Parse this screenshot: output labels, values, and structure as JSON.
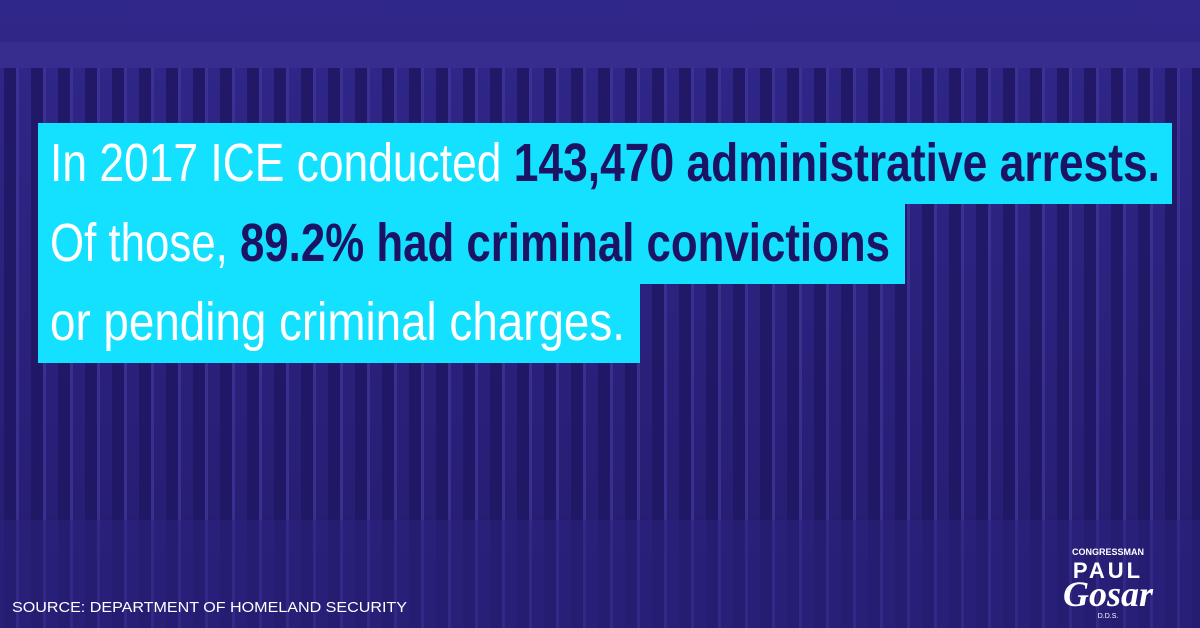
{
  "headline": {
    "lines": [
      {
        "normal": "In 2017 ICE conducted ",
        "bold": "143,470 administrative arrests."
      },
      {
        "normal": "Of those, ",
        "bold": "89.2% had criminal convictions"
      },
      {
        "normal": "or pending criminal charges."
      }
    ]
  },
  "source": "SOURCE: DEPARTMENT OF HOMELAND SECURITY",
  "logo": {
    "top": "CONGRESSMAN",
    "first": "PAUL",
    "last": "Gosar",
    "suffix": "D.D.S."
  }
}
